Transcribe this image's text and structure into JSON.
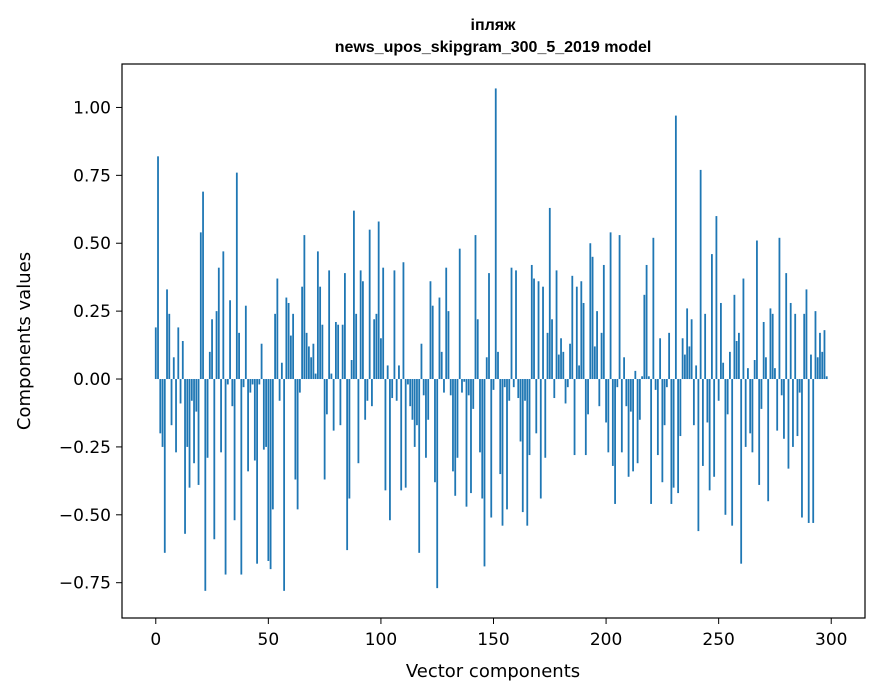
{
  "chart_data": {
    "type": "bar",
    "title": "іпляж",
    "subtitle": "news_upos_skipgram_300_5_2019 model",
    "xlabel": "Vector components",
    "ylabel": "Components values",
    "xlim": [
      -15,
      315
    ],
    "ylim": [
      -0.88,
      1.16
    ],
    "xticks": [
      0,
      50,
      100,
      150,
      200,
      250,
      300
    ],
    "yticks": [
      -0.75,
      -0.5,
      -0.25,
      0.0,
      0.25,
      0.5,
      0.75,
      1.0
    ],
    "ytick_labels": [
      "−0.75",
      "−0.50",
      "−0.25",
      "0.00",
      "0.25",
      "0.50",
      "0.75",
      "1.00"
    ],
    "bar_color": "#1f77b4",
    "values": [
      0.19,
      0.82,
      -0.2,
      -0.25,
      -0.64,
      0.33,
      0.24,
      -0.17,
      0.08,
      -0.27,
      0.19,
      -0.09,
      0.14,
      -0.57,
      -0.25,
      -0.4,
      -0.08,
      -0.31,
      -0.12,
      -0.39,
      0.54,
      0.69,
      -0.78,
      -0.29,
      0.1,
      0.22,
      -0.59,
      0.25,
      0.41,
      -0.27,
      0.47,
      -0.72,
      -0.02,
      0.29,
      -0.1,
      -0.52,
      0.76,
      0.17,
      -0.72,
      -0.03,
      0.27,
      -0.34,
      -0.05,
      -0.02,
      -0.3,
      -0.68,
      -0.02,
      0.13,
      -0.26,
      -0.25,
      -0.67,
      -0.7,
      -0.48,
      0.24,
      0.37,
      -0.08,
      0.06,
      -0.78,
      0.3,
      0.28,
      0.16,
      0.24,
      -0.37,
      -0.48,
      -0.05,
      0.34,
      0.53,
      0.17,
      0.12,
      0.08,
      0.13,
      0.02,
      0.47,
      0.34,
      0.2,
      -0.37,
      -0.13,
      0.4,
      0.02,
      -0.19,
      0.21,
      0.2,
      -0.17,
      0.2,
      0.39,
      -0.63,
      -0.44,
      0.07,
      0.62,
      0.24,
      -0.31,
      0.4,
      0.36,
      -0.15,
      -0.08,
      0.55,
      -0.1,
      0.22,
      0.24,
      0.58,
      0.15,
      0.41,
      -0.41,
      0.05,
      -0.52,
      -0.07,
      0.4,
      -0.08,
      0.05,
      -0.41,
      0.43,
      -0.4,
      -0.02,
      -0.1,
      -0.15,
      -0.25,
      -0.17,
      -0.64,
      0.13,
      -0.06,
      -0.29,
      -0.15,
      0.36,
      0.27,
      -0.38,
      -0.77,
      0.3,
      0.1,
      -0.05,
      0.41,
      0.25,
      -0.06,
      -0.34,
      -0.43,
      -0.29,
      0.48,
      -0.05,
      -0.01,
      -0.47,
      -0.06,
      -0.42,
      -0.11,
      0.53,
      0.22,
      -0.27,
      -0.44,
      -0.69,
      0.08,
      0.39,
      -0.51,
      -0.04,
      1.07,
      0.1,
      -0.35,
      -0.54,
      -0.03,
      -0.48,
      -0.08,
      0.41,
      -0.03,
      0.4,
      -0.07,
      -0.23,
      -0.49,
      -0.08,
      -0.54,
      -0.28,
      0.42,
      0.37,
      -0.2,
      0.36,
      -0.44,
      0.34,
      -0.29,
      0.17,
      0.63,
      0.22,
      -0.07,
      0.4,
      0.09,
      0.15,
      0.1,
      -0.09,
      -0.03,
      0.13,
      0.38,
      -0.28,
      0.34,
      0.05,
      0.36,
      0.28,
      -0.28,
      -0.13,
      0.5,
      0.45,
      0.12,
      0.25,
      -0.1,
      0.17,
      0.42,
      -0.16,
      -0.27,
      0.54,
      -0.32,
      -0.46,
      -0.03,
      0.53,
      -0.27,
      0.08,
      -0.1,
      -0.36,
      -0.12,
      -0.34,
      0.03,
      -0.31,
      -0.15,
      0.01,
      0.31,
      0.42,
      0.01,
      -0.46,
      0.52,
      -0.04,
      -0.28,
      0.15,
      -0.38,
      -0.17,
      -0.03,
      0.17,
      -0.46,
      -0.4,
      0.97,
      -0.42,
      -0.21,
      0.15,
      0.09,
      0.26,
      0.12,
      0.22,
      -0.17,
      0.05,
      -0.56,
      0.77,
      -0.32,
      0.24,
      -0.16,
      -0.41,
      0.46,
      -0.36,
      0.6,
      -0.08,
      0.28,
      0.06,
      -0.5,
      -0.13,
      0.1,
      -0.54,
      0.31,
      0.14,
      0.17,
      -0.68,
      0.37,
      -0.25,
      0.04,
      -0.2,
      -0.27,
      0.07,
      0.51,
      -0.39,
      -0.11,
      0.21,
      0.08,
      -0.45,
      0.26,
      0.24,
      0.04,
      -0.19,
      0.52,
      -0.06,
      -0.22,
      0.39,
      -0.33,
      0.28,
      -0.25,
      0.24,
      -0.21,
      -0.05,
      -0.51,
      0.24,
      0.33,
      -0.53,
      0.09,
      -0.53,
      0.25,
      0.08,
      0.17,
      0.1,
      0.18,
      0.01
    ]
  }
}
